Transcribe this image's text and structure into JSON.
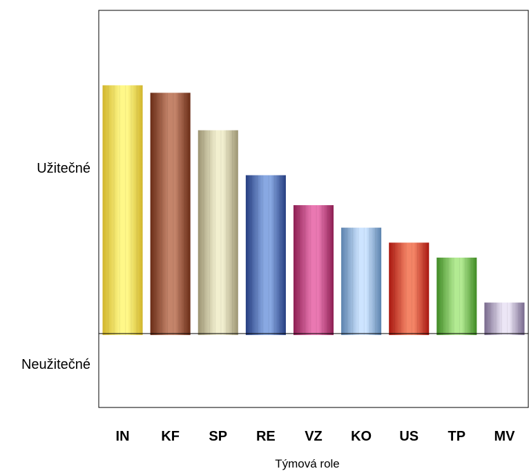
{
  "chart_data": {
    "type": "bar",
    "xlabel": "Týmová role",
    "ylabel": "",
    "y_region_labels": {
      "positive": "Užitečné",
      "negative": "Neužitečné"
    },
    "categories": [
      "IN",
      "KF",
      "SP",
      "RE",
      "VZ",
      "KO",
      "US",
      "TP",
      "MV"
    ],
    "values": [
      100,
      97,
      82,
      64,
      52,
      43,
      37,
      31,
      13
    ],
    "ylim": [
      -29,
      130
    ],
    "grid": false,
    "legend": "none",
    "colors": {
      "IN": [
        "#d1b52c",
        "#fff888"
      ],
      "KF": [
        "#6a2c16",
        "#c4846a"
      ],
      "SP": [
        "#9c9472",
        "#f2efcf"
      ],
      "RE": [
        "#253d80",
        "#88a8e2"
      ],
      "VZ": [
        "#8c1e52",
        "#ea78b2"
      ],
      "KO": [
        "#5b82ad",
        "#cde4ff"
      ],
      "US": [
        "#a8170f",
        "#f48466"
      ],
      "TP": [
        "#3f8a24",
        "#b2ea92"
      ],
      "MV": [
        "#77688c",
        "#ece6f6"
      ]
    }
  }
}
